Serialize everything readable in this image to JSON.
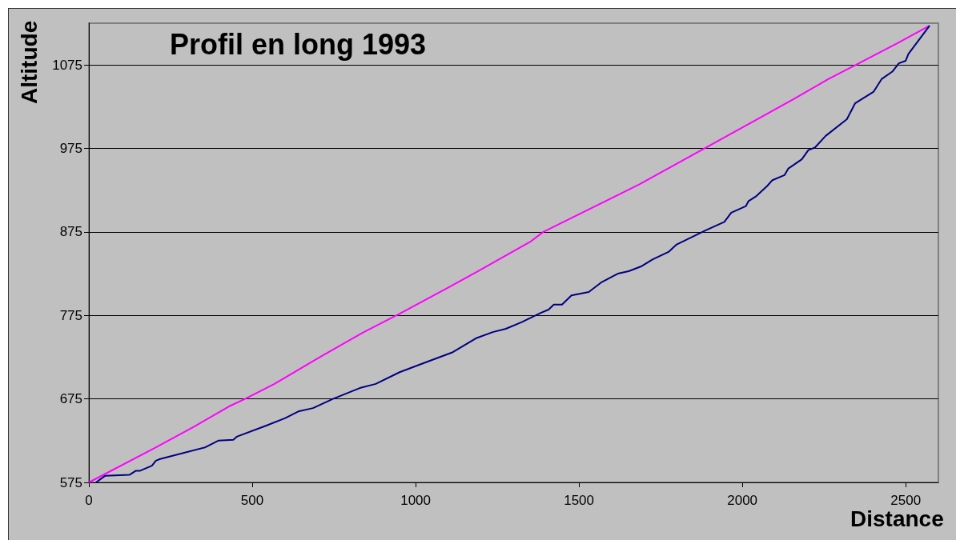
{
  "chart_data": {
    "type": "line",
    "title": "Profil en long 1993",
    "xlabel": "Distance",
    "ylabel": "Altitude",
    "xlim": [
      0,
      2600
    ],
    "xticks": [
      0,
      500,
      1000,
      1500,
      2000,
      2500
    ],
    "ylim": [
      575,
      1125
    ],
    "yticks": [
      575,
      675,
      775,
      875,
      975,
      1075
    ],
    "grid": "y",
    "marker": "none",
    "line_style": "solid",
    "series": [
      {
        "color": "#ff00ff",
        "x": [
          0,
          201,
          323,
          429,
          478,
          568,
          707,
          837,
          951,
          1098,
          1196,
          1350,
          1391,
          1685,
          1888,
          2051,
          2157,
          2263,
          2352,
          2474,
          2573
        ],
        "values": [
          575,
          616,
          642,
          666,
          675,
          693,
          725,
          754,
          777,
          808,
          829,
          863,
          875,
          932,
          976,
          1011,
          1034,
          1058,
          1076,
          1101,
          1122
        ]
      },
      {
        "color": "#000080",
        "x": [
          22,
          50,
          124,
          144,
          157,
          193,
          205,
          218,
          356,
          396,
          442,
          454,
          543,
          601,
          641,
          686,
          747,
          829,
          878,
          951,
          1032,
          1114,
          1187,
          1236,
          1276,
          1325,
          1383,
          1407,
          1423,
          1448,
          1477,
          1530,
          1570,
          1619,
          1652,
          1692,
          1725,
          1774,
          1799,
          1888,
          1945,
          1966,
          2011,
          2019,
          2043,
          2076,
          2092,
          2129,
          2141,
          2182,
          2202,
          2222,
          2255,
          2320,
          2345,
          2402,
          2426,
          2459,
          2479,
          2500,
          2508,
          2573
        ],
        "values": [
          575,
          583,
          584,
          589,
          589,
          595,
          601,
          603,
          617,
          625,
          626,
          630,
          643,
          652,
          660,
          664,
          675,
          688,
          693,
          707,
          719,
          731,
          748,
          755,
          759,
          767,
          778,
          782,
          788,
          788,
          799,
          803,
          815,
          825,
          828,
          834,
          842,
          851,
          860,
          877,
          887,
          898,
          906,
          912,
          918,
          930,
          937,
          943,
          951,
          962,
          973,
          976,
          990,
          1010,
          1029,
          1043,
          1058,
          1067,
          1077,
          1080,
          1088,
          1122
        ]
      }
    ]
  }
}
